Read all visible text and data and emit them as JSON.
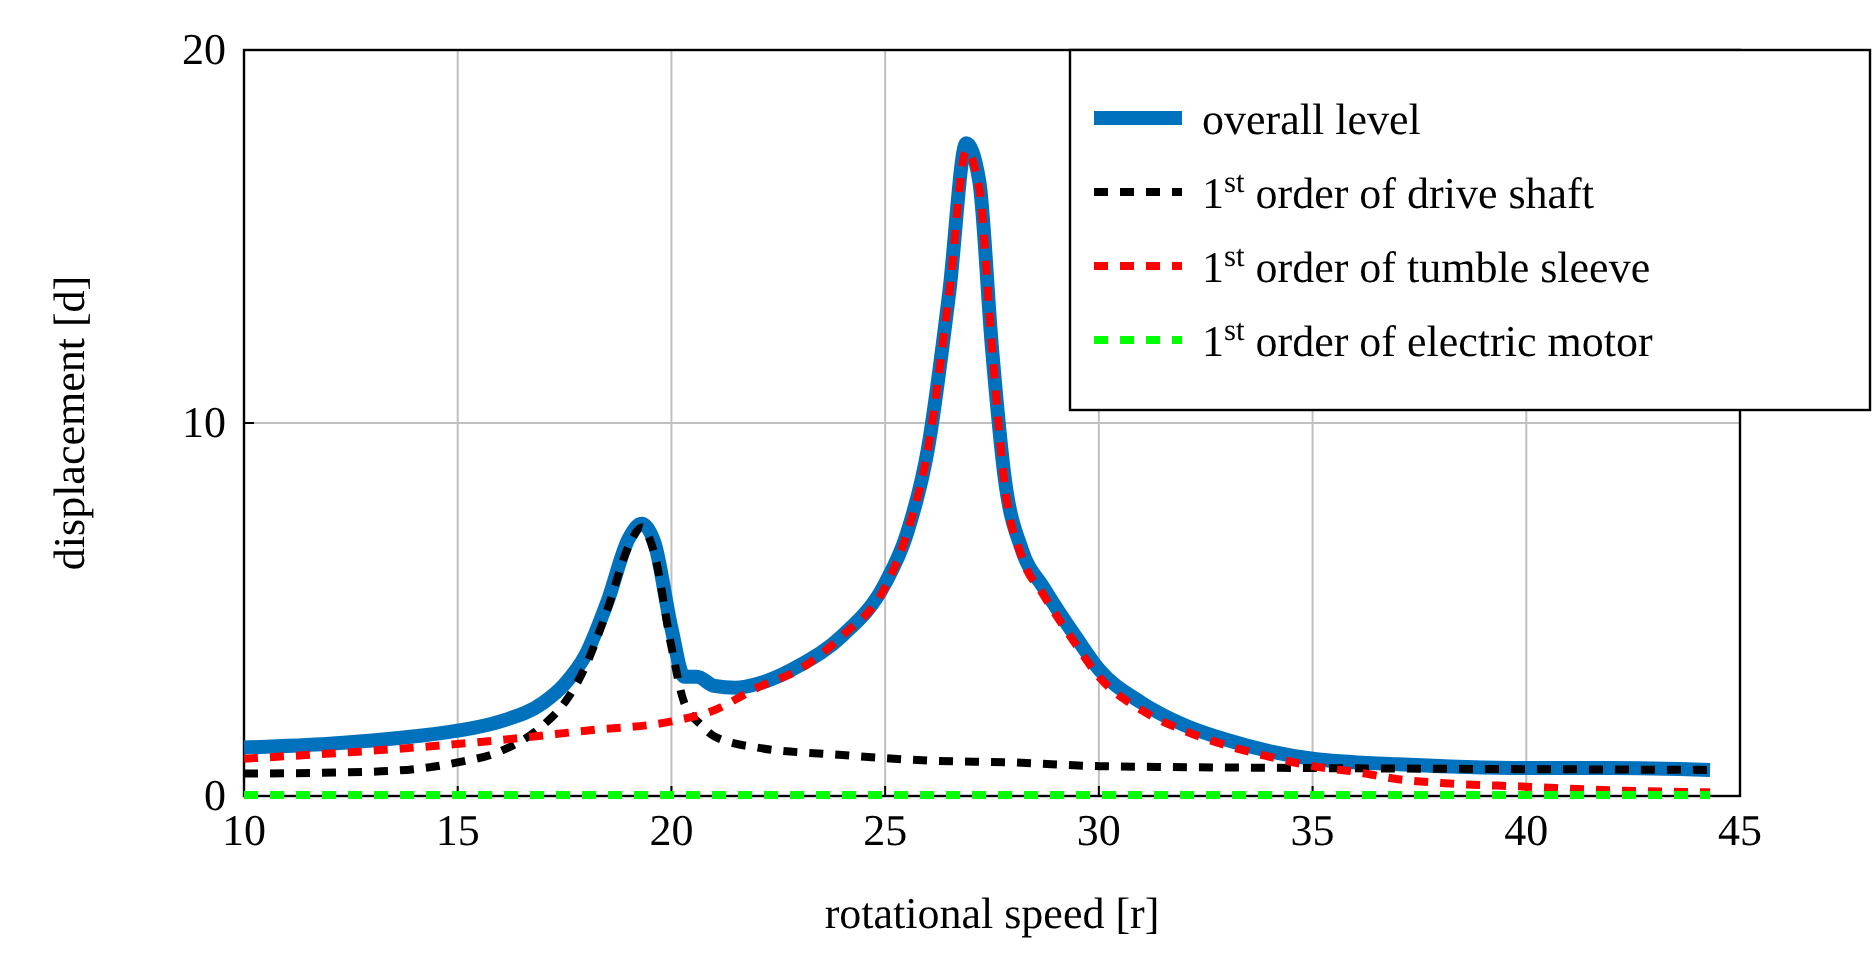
{
  "chart_data": {
    "type": "line",
    "xlabel": "rotational speed [r]",
    "ylabel": "displacement [d]",
    "xlim": [
      10,
      45
    ],
    "ylim": [
      0,
      20
    ],
    "xticks": [
      10,
      15,
      20,
      25,
      30,
      35,
      40,
      45
    ],
    "yticks": [
      0,
      10,
      20
    ],
    "grid": true,
    "legend": "top right",
    "marker": "none",
    "series": [
      {
        "name": "overall level",
        "color": "#0072bd",
        "line_style": "solid",
        "x": [
          10,
          12,
          14,
          15,
          16,
          17,
          17.5,
          18,
          18.5,
          19,
          19.3,
          19.6,
          20,
          20.3,
          20.6,
          21,
          21.5,
          22,
          23,
          24,
          25,
          25.5,
          26,
          26.5,
          26.9,
          27.2,
          27.5,
          27.8,
          28.2,
          28.7,
          29.5,
          30,
          31,
          32,
          33,
          34,
          35,
          37,
          40,
          42,
          44.3
        ],
        "values": [
          1.3,
          1.4,
          1.6,
          1.75,
          2.0,
          2.5,
          3.0,
          3.8,
          5.2,
          6.9,
          7.3,
          6.8,
          4.5,
          3.2,
          3.2,
          2.95,
          2.9,
          3.0,
          3.5,
          4.3,
          5.7,
          7.0,
          9.3,
          13.5,
          17.5,
          16.5,
          12,
          8.5,
          6.6,
          5.6,
          4.2,
          3.4,
          2.5,
          1.9,
          1.5,
          1.2,
          1.0,
          0.85,
          0.75,
          0.75,
          0.7
        ]
      },
      {
        "name": "1$^{st}$ order of drive shaft",
        "color": "#000000",
        "line_style": "dashed",
        "x": [
          10,
          13,
          15,
          16,
          17,
          17.5,
          18,
          18.5,
          19,
          19.3,
          19.6,
          20,
          20.3,
          20.7,
          21,
          22,
          24,
          26,
          28,
          30,
          35,
          40,
          44.3
        ],
        "values": [
          0.6,
          0.65,
          0.9,
          1.2,
          1.9,
          2.5,
          3.5,
          5.0,
          6.7,
          7.2,
          6.5,
          4.0,
          2.5,
          1.9,
          1.6,
          1.3,
          1.1,
          0.95,
          0.9,
          0.8,
          0.75,
          0.72,
          0.7
        ]
      },
      {
        "name": "1$^{st}$ order of tumble sleeve",
        "color": "#ff0000",
        "line_style": "dashed",
        "x": [
          10,
          14,
          16,
          18,
          20,
          21,
          22,
          23,
          24,
          25,
          25.5,
          26,
          26.5,
          26.9,
          27.2,
          27.5,
          27.8,
          28.2,
          28.7,
          29.5,
          30,
          31,
          32,
          33,
          34,
          35,
          36,
          37,
          38,
          40,
          42,
          44.3
        ],
        "values": [
          1.0,
          1.3,
          1.5,
          1.75,
          2.0,
          2.3,
          2.9,
          3.4,
          4.3,
          5.6,
          7.0,
          9.3,
          13.5,
          17.3,
          16.3,
          12,
          8.3,
          6.4,
          5.4,
          4.0,
          3.2,
          2.3,
          1.75,
          1.35,
          1.05,
          0.8,
          0.65,
          0.45,
          0.35,
          0.25,
          0.15,
          0.1
        ]
      },
      {
        "name": "1$^{st}$ order of electric motor",
        "color": "#00ff00",
        "line_style": "dashed",
        "x": [
          10,
          20,
          30,
          40,
          44.3
        ],
        "values": [
          0.03,
          0.03,
          0.03,
          0.03,
          0.03
        ]
      }
    ]
  }
}
